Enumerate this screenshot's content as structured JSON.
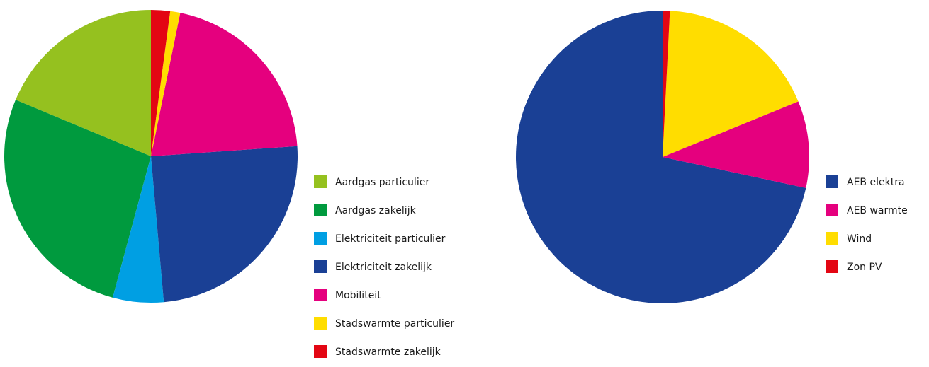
{
  "chart_data": [
    {
      "type": "pie",
      "categories": [
        "Aardgas particulier",
        "Aardgas zakelijk",
        "Elektriciteit particulier",
        "Elektriciteit zakelijk",
        "Mobiliteit",
        "Stadswarmte particulier",
        "Stadswarmte  zakelijk"
      ],
      "values": [
        18.7,
        27.1,
        5.6,
        24.7,
        20.7,
        1.1,
        2.1
      ],
      "colors": [
        "#95c11f",
        "#009a3e",
        "#009fe3",
        "#1a4095",
        "#e5007e",
        "#ffdd00",
        "#e30613"
      ]
    },
    {
      "type": "pie",
      "categories": [
        "AEB elektra",
        "AEB warmte",
        "Wind",
        "Zon PV"
      ],
      "values": [
        71.6,
        9.6,
        18.0,
        0.8
      ],
      "colors": [
        "#1a4095",
        "#e5007e",
        "#ffdd00",
        "#e30613"
      ]
    }
  ]
}
